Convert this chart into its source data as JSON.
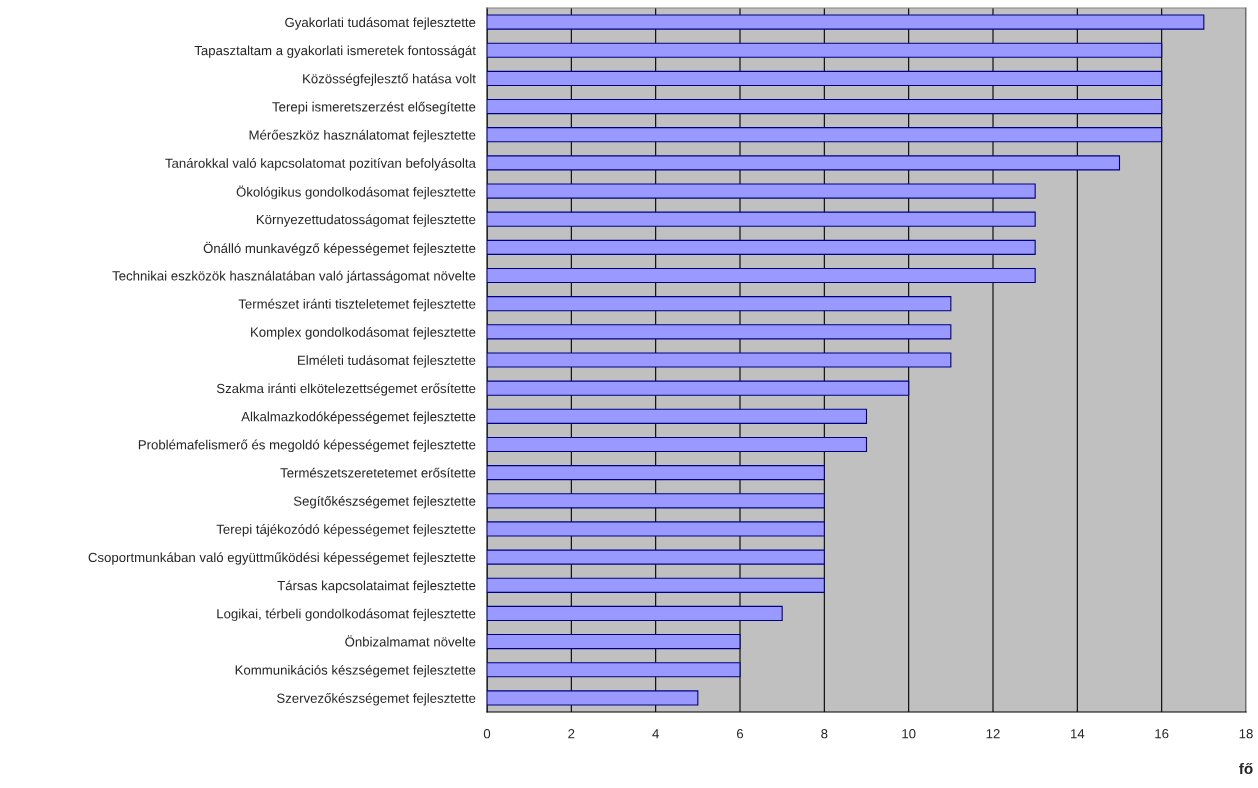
{
  "chart_data": {
    "type": "bar",
    "orientation": "horizontal",
    "xlabel": "fő",
    "categories": [
      "Gyakorlati tudásomat fejlesztette",
      "Tapasztaltam a gyakorlati ismeretek fontosságát",
      "Közösségfejlesztő hatása volt",
      "Terepi ismeretszerzést elősegítette",
      "Mérőeszköz használatomat fejlesztette",
      "Tanárokkal való kapcsolatomat pozitívan befolyásolta",
      "Ökológikus gondolkodásomat fejlesztette",
      "Környezettudatosságomat fejlesztette",
      "Önálló munkavégző képességemet fejlesztette",
      "Technikai eszközök használatában való jártasságomat növelte",
      "Természet iránti tiszteletemet fejlesztette",
      "Komplex gondolkodásomat fejlesztette",
      "Elméleti tudásomat fejlesztette",
      "Szakma iránti elkötelezettségemet erősítette",
      "Alkalmazkodóképességemet fejlesztette",
      "Problémafelismerő és megoldó képességemet fejlesztette",
      "Természetszeretetemet erősítette",
      "Segítőkészségemet fejlesztette",
      "Terepi tájékozódó képességemet fejlesztette",
      "Csoportmunkában való együttműködési képességemet fejlesztette",
      "Társas kapcsolataimat fejlesztette",
      "Logikai, térbeli gondolkodásomat fejlesztette",
      "Önbizalmamat növelte",
      "Kommunikációs készségemet fejlesztette",
      "Szervezőkészségemet fejlesztette"
    ],
    "values": [
      17,
      16,
      16,
      16,
      16,
      15,
      13,
      13,
      13,
      13,
      11,
      11,
      11,
      10,
      9,
      9,
      8,
      8,
      8,
      8,
      8,
      7,
      6,
      6,
      5
    ],
    "color": "#9999ff",
    "xlim": [
      0,
      18
    ],
    "xticks": [
      0,
      2,
      4,
      6,
      8,
      10,
      12,
      14,
      16,
      18
    ],
    "grid": "x"
  }
}
